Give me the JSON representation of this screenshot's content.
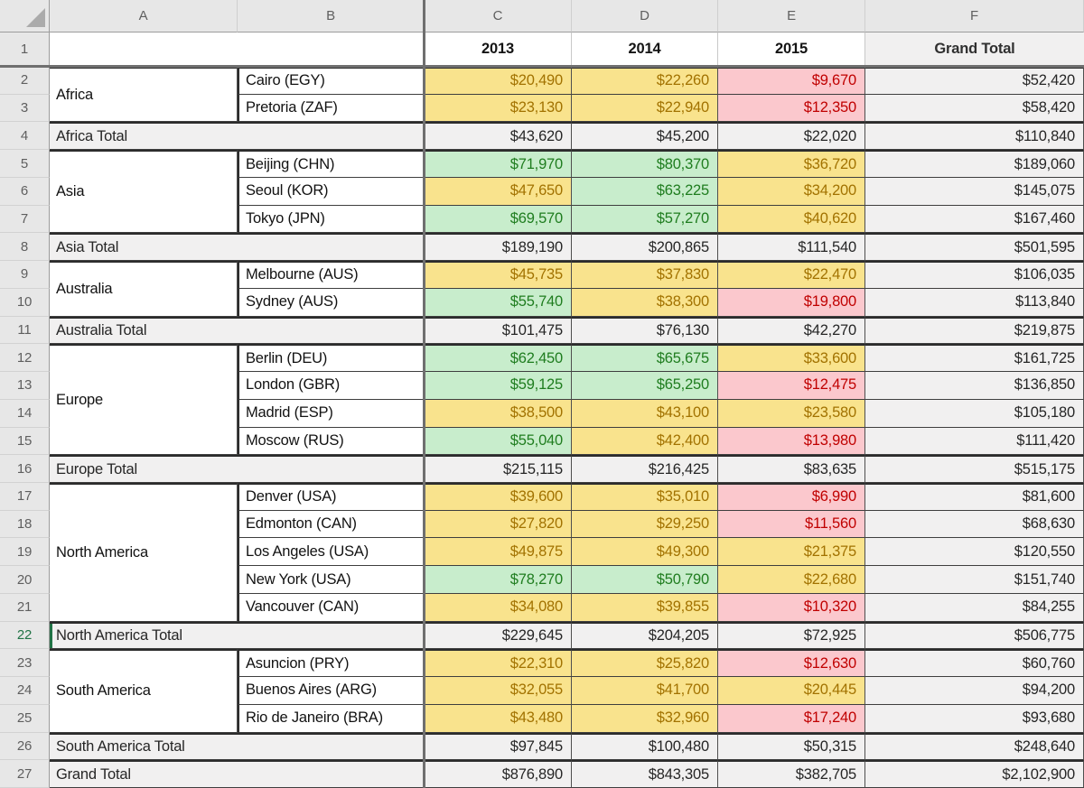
{
  "sheet": {
    "column_headers": [
      "A",
      "B",
      "C",
      "D",
      "E",
      "F"
    ],
    "title_row": {
      "num": "1",
      "years": [
        "2013",
        "2014",
        "2015"
      ],
      "grand_total_label": "Grand Total"
    },
    "selected": {
      "row": 22,
      "cell": "A22"
    },
    "colors": {
      "accent_green": "#217346",
      "cond_high_bg": "#C8EDCC",
      "cond_high_text": "#1F7D1F",
      "cond_mid_bg": "#F9E38D",
      "cond_mid_text": "#A27200",
      "cond_low_bg": "#FBC8CD",
      "cond_low_text": "#C00000",
      "total_bg": "#F1F0F0",
      "header_bg": "#E7E7E7"
    },
    "rows": [
      {
        "num": 2,
        "region": "Africa",
        "span": 2,
        "city": "Cairo (EGY)",
        "values": [
          "$20,490",
          "$22,260",
          "$9,670"
        ],
        "levels": [
          "mid",
          "mid",
          "low"
        ],
        "total": "$52,420"
      },
      {
        "num": 3,
        "city": "Pretoria (ZAF)",
        "values": [
          "$23,130",
          "$22,940",
          "$12,350"
        ],
        "levels": [
          "mid",
          "mid",
          "low"
        ],
        "total": "$58,420"
      },
      {
        "num": 4,
        "kind": "total",
        "label": "Africa Total",
        "values": [
          "$43,620",
          "$45,200",
          "$22,020"
        ],
        "total": "$110,840"
      },
      {
        "num": 5,
        "region": "Asia",
        "span": 3,
        "city": "Beijing (CHN)",
        "values": [
          "$71,970",
          "$80,370",
          "$36,720"
        ],
        "levels": [
          "high",
          "high",
          "mid"
        ],
        "total": "$189,060"
      },
      {
        "num": 6,
        "city": "Seoul (KOR)",
        "values": [
          "$47,650",
          "$63,225",
          "$34,200"
        ],
        "levels": [
          "mid",
          "high",
          "mid"
        ],
        "total": "$145,075"
      },
      {
        "num": 7,
        "city": "Tokyo (JPN)",
        "values": [
          "$69,570",
          "$57,270",
          "$40,620"
        ],
        "levels": [
          "high",
          "high",
          "mid"
        ],
        "total": "$167,460"
      },
      {
        "num": 8,
        "kind": "total",
        "label": "Asia Total",
        "values": [
          "$189,190",
          "$200,865",
          "$111,540"
        ],
        "total": "$501,595"
      },
      {
        "num": 9,
        "region": "Australia",
        "span": 2,
        "city": "Melbourne (AUS)",
        "values": [
          "$45,735",
          "$37,830",
          "$22,470"
        ],
        "levels": [
          "mid",
          "mid",
          "mid"
        ],
        "total": "$106,035"
      },
      {
        "num": 10,
        "city": "Sydney (AUS)",
        "values": [
          "$55,740",
          "$38,300",
          "$19,800"
        ],
        "levels": [
          "high",
          "mid",
          "low"
        ],
        "total": "$113,840"
      },
      {
        "num": 11,
        "kind": "total",
        "label": "Australia Total",
        "values": [
          "$101,475",
          "$76,130",
          "$42,270"
        ],
        "total": "$219,875"
      },
      {
        "num": 12,
        "region": "Europe",
        "span": 4,
        "city": "Berlin (DEU)",
        "values": [
          "$62,450",
          "$65,675",
          "$33,600"
        ],
        "levels": [
          "high",
          "high",
          "mid"
        ],
        "total": "$161,725"
      },
      {
        "num": 13,
        "city": "London (GBR)",
        "values": [
          "$59,125",
          "$65,250",
          "$12,475"
        ],
        "levels": [
          "high",
          "high",
          "low"
        ],
        "total": "$136,850"
      },
      {
        "num": 14,
        "city": "Madrid (ESP)",
        "values": [
          "$38,500",
          "$43,100",
          "$23,580"
        ],
        "levels": [
          "mid",
          "mid",
          "mid"
        ],
        "total": "$105,180"
      },
      {
        "num": 15,
        "city": "Moscow (RUS)",
        "values": [
          "$55,040",
          "$42,400",
          "$13,980"
        ],
        "levels": [
          "high",
          "mid",
          "low"
        ],
        "total": "$111,420"
      },
      {
        "num": 16,
        "kind": "total",
        "label": "Europe Total",
        "values": [
          "$215,115",
          "$216,425",
          "$83,635"
        ],
        "total": "$515,175"
      },
      {
        "num": 17,
        "region": "North America",
        "span": 5,
        "city": "Denver (USA)",
        "values": [
          "$39,600",
          "$35,010",
          "$6,990"
        ],
        "levels": [
          "mid",
          "mid",
          "low"
        ],
        "total": "$81,600"
      },
      {
        "num": 18,
        "city": "Edmonton (CAN)",
        "values": [
          "$27,820",
          "$29,250",
          "$11,560"
        ],
        "levels": [
          "mid",
          "mid",
          "low"
        ],
        "total": "$68,630"
      },
      {
        "num": 19,
        "city": "Los Angeles (USA)",
        "values": [
          "$49,875",
          "$49,300",
          "$21,375"
        ],
        "levels": [
          "mid",
          "mid",
          "mid"
        ],
        "total": "$120,550"
      },
      {
        "num": 20,
        "city": "New York (USA)",
        "values": [
          "$78,270",
          "$50,790",
          "$22,680"
        ],
        "levels": [
          "high",
          "high",
          "mid"
        ],
        "total": "$151,740"
      },
      {
        "num": 21,
        "city": "Vancouver (CAN)",
        "values": [
          "$34,080",
          "$39,855",
          "$10,320"
        ],
        "levels": [
          "mid",
          "mid",
          "low"
        ],
        "total": "$84,255"
      },
      {
        "num": 22,
        "kind": "total",
        "label": "North America Total",
        "values": [
          "$229,645",
          "$204,205",
          "$72,925"
        ],
        "total": "$506,775",
        "selected": true
      },
      {
        "num": 23,
        "region": "South America",
        "span": 3,
        "city": "Asuncion (PRY)",
        "values": [
          "$22,310",
          "$25,820",
          "$12,630"
        ],
        "levels": [
          "mid",
          "mid",
          "low"
        ],
        "total": "$60,760"
      },
      {
        "num": 24,
        "city": "Buenos Aires (ARG)",
        "values": [
          "$32,055",
          "$41,700",
          "$20,445"
        ],
        "levels": [
          "mid",
          "mid",
          "mid"
        ],
        "total": "$94,200"
      },
      {
        "num": 25,
        "city": "Rio de Janeiro (BRA)",
        "values": [
          "$43,480",
          "$32,960",
          "$17,240"
        ],
        "levels": [
          "mid",
          "mid",
          "low"
        ],
        "total": "$93,680"
      },
      {
        "num": 26,
        "kind": "total",
        "label": "South America Total",
        "values": [
          "$97,845",
          "$100,480",
          "$50,315"
        ],
        "total": "$248,640"
      },
      {
        "num": 27,
        "kind": "grand",
        "label": "Grand Total",
        "values": [
          "$876,890",
          "$843,305",
          "$382,705"
        ],
        "total": "$2,102,900"
      }
    ]
  }
}
